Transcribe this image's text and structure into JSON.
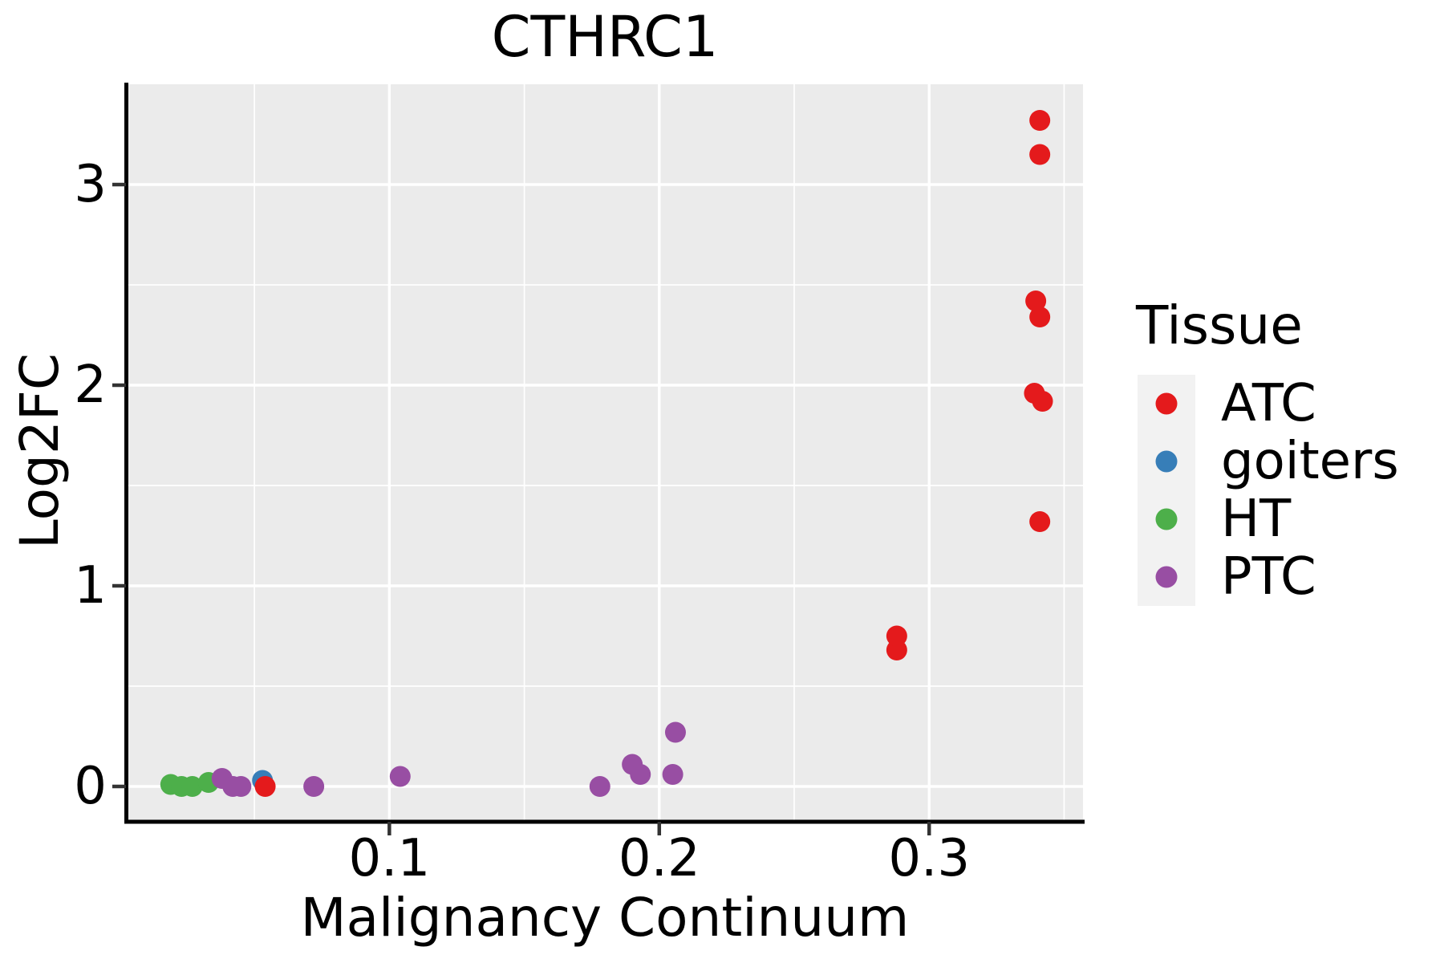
{
  "chart_data": {
    "type": "scatter",
    "title": "CTHRC1",
    "xlabel": "Malignancy Continuum",
    "ylabel": "Log2FC",
    "xlim": [
      0.003,
      0.357
    ],
    "ylim": [
      -0.168,
      3.5
    ],
    "x_major_ticks": [
      0.1,
      0.2,
      0.3
    ],
    "x_tick_labels": [
      "0.1",
      "0.2",
      "0.3"
    ],
    "x_minor_ticks": [
      0.05,
      0.15,
      0.25,
      0.35
    ],
    "y_major_ticks": [
      0,
      1,
      2,
      3
    ],
    "y_tick_labels": [
      "0",
      "1",
      "2",
      "3"
    ],
    "y_minor_ticks": [
      0.5,
      1.5,
      2.5
    ],
    "grid": true,
    "panel_background": "#ebebeb",
    "grid_color": "#ffffff",
    "point_radius_px": 13,
    "legend_title": "Tissue",
    "legend_position": "right",
    "legend_key_background": "#f2f2f2",
    "legend_order": [
      "ATC",
      "goiters",
      "HT",
      "PTC"
    ],
    "series": [
      {
        "name": "HT",
        "color": "#4daf4a",
        "points": [
          [
            0.019,
            0.01
          ],
          [
            0.023,
            0.0
          ],
          [
            0.027,
            0.0
          ],
          [
            0.033,
            0.02
          ]
        ]
      },
      {
        "name": "PTC",
        "color": "#984ea3",
        "points": [
          [
            0.038,
            0.04
          ],
          [
            0.042,
            0.0
          ],
          [
            0.045,
            0.0
          ],
          [
            0.072,
            0.0
          ],
          [
            0.104,
            0.05
          ],
          [
            0.178,
            0.0
          ],
          [
            0.19,
            0.11
          ],
          [
            0.193,
            0.06
          ],
          [
            0.205,
            0.06
          ],
          [
            0.206,
            0.27
          ]
        ]
      },
      {
        "name": "goiters",
        "color": "#377eb8",
        "points": [
          [
            0.053,
            0.03
          ]
        ]
      },
      {
        "name": "ATC",
        "color": "#e41a1c",
        "points": [
          [
            0.054,
            0.0
          ],
          [
            0.288,
            0.68
          ],
          [
            0.288,
            0.75
          ],
          [
            0.3395,
            2.42
          ],
          [
            0.341,
            2.34
          ],
          [
            0.339,
            1.96
          ],
          [
            0.342,
            1.92
          ],
          [
            0.341,
            1.32
          ],
          [
            0.341,
            3.15
          ],
          [
            0.341,
            3.32
          ]
        ]
      }
    ]
  }
}
